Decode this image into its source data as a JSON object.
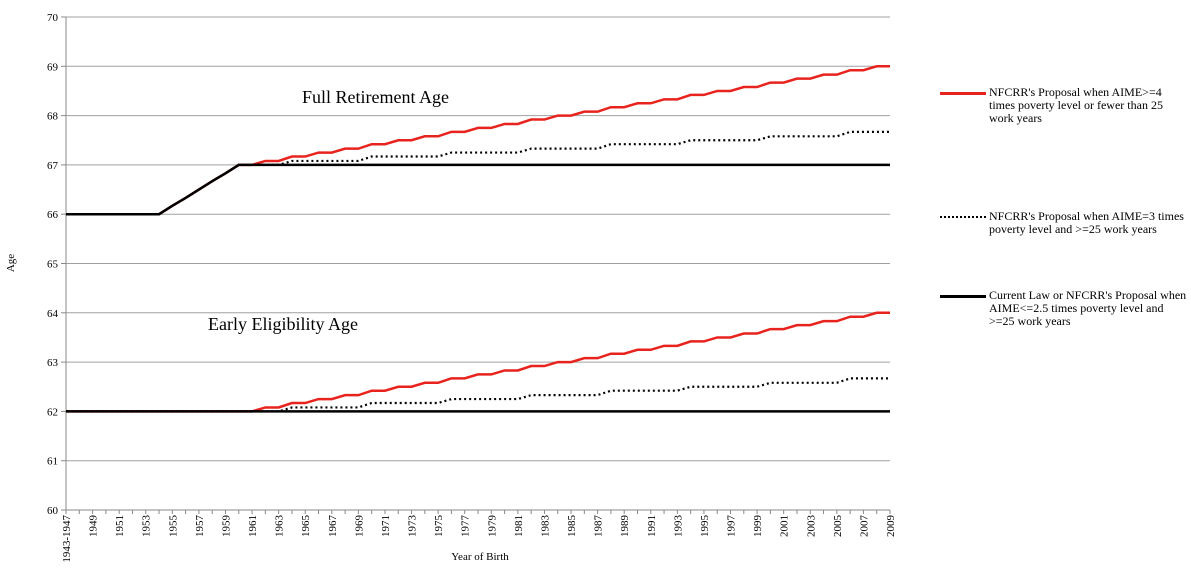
{
  "chart_data": {
    "type": "line",
    "x_label": "Year of Birth",
    "y_label": "Age",
    "annotations": [
      "Full Retirement Age",
      "Early Eligibility Age"
    ],
    "categories": [
      "1943-1947",
      null,
      "1949",
      null,
      "1951",
      null,
      "1953",
      null,
      "1955",
      null,
      "1957",
      null,
      "1959",
      null,
      "1961",
      null,
      "1963",
      null,
      "1965",
      null,
      "1967",
      null,
      "1969",
      null,
      "1971",
      null,
      "1973",
      null,
      "1975",
      null,
      "1977",
      null,
      "1979",
      null,
      "1981",
      null,
      "1983",
      null,
      "1985",
      null,
      "1987",
      null,
      "1989",
      null,
      "1991",
      null,
      "1993",
      null,
      "1995",
      null,
      "1997",
      null,
      "1999",
      null,
      "2001",
      null,
      "2003",
      null,
      "2005",
      null,
      "2007",
      null,
      "2009"
    ],
    "ylim": [
      60,
      70
    ],
    "yticks": [
      60,
      61,
      62,
      63,
      64,
      65,
      66,
      67,
      68,
      69,
      70
    ],
    "grid": true,
    "series": [
      {
        "name": "NFCRR's Proposal when AIME>=4 times poverty level or fewer than 25 work years",
        "color": "#e8231d",
        "dashed": false,
        "values": [
          66,
          66,
          66,
          66,
          66,
          66,
          66,
          66,
          66.17,
          66.33,
          66.5,
          66.67,
          66.83,
          67,
          67,
          67.08,
          67.08,
          67.17,
          67.17,
          67.25,
          67.25,
          67.33,
          67.33,
          67.42,
          67.42,
          67.5,
          67.5,
          67.58,
          67.58,
          67.67,
          67.67,
          67.75,
          67.75,
          67.83,
          67.83,
          67.92,
          67.92,
          68,
          68,
          68.08,
          68.08,
          68.17,
          68.17,
          68.25,
          68.25,
          68.33,
          68.33,
          68.42,
          68.42,
          68.5,
          68.5,
          68.58,
          68.58,
          68.67,
          68.67,
          68.75,
          68.75,
          68.83,
          68.83,
          68.92,
          68.92,
          69,
          69
        ],
        "early_values": [
          62,
          62,
          62,
          62,
          62,
          62,
          62,
          62,
          62,
          62,
          62,
          62,
          62,
          62,
          62,
          62.08,
          62.08,
          62.17,
          62.17,
          62.25,
          62.25,
          62.33,
          62.33,
          62.42,
          62.42,
          62.5,
          62.5,
          62.58,
          62.58,
          62.67,
          62.67,
          62.75,
          62.75,
          62.83,
          62.83,
          62.92,
          62.92,
          63,
          63,
          63.08,
          63.08,
          63.17,
          63.17,
          63.25,
          63.25,
          63.33,
          63.33,
          63.42,
          63.42,
          63.5,
          63.5,
          63.58,
          63.58,
          63.67,
          63.67,
          63.75,
          63.75,
          63.83,
          63.83,
          63.92,
          63.92,
          64,
          64
        ]
      },
      {
        "name": "NFCRR's Proposal when AIME=3 times poverty level and >=25 work years",
        "color": "#000000",
        "dashed": true,
        "values": [
          66,
          66,
          66,
          66,
          66,
          66,
          66,
          66,
          66.17,
          66.33,
          66.5,
          66.67,
          66.83,
          67,
          67,
          67,
          67,
          67.08,
          67.08,
          67.08,
          67.08,
          67.08,
          67.08,
          67.17,
          67.17,
          67.17,
          67.17,
          67.17,
          67.17,
          67.25,
          67.25,
          67.25,
          67.25,
          67.25,
          67.25,
          67.33,
          67.33,
          67.33,
          67.33,
          67.33,
          67.33,
          67.42,
          67.42,
          67.42,
          67.42,
          67.42,
          67.42,
          67.5,
          67.5,
          67.5,
          67.5,
          67.5,
          67.5,
          67.58,
          67.58,
          67.58,
          67.58,
          67.58,
          67.58,
          67.67,
          67.67,
          67.67,
          67.67
        ],
        "early_values": [
          62,
          62,
          62,
          62,
          62,
          62,
          62,
          62,
          62,
          62,
          62,
          62,
          62,
          62,
          62,
          62,
          62,
          62.08,
          62.08,
          62.08,
          62.08,
          62.08,
          62.08,
          62.17,
          62.17,
          62.17,
          62.17,
          62.17,
          62.17,
          62.25,
          62.25,
          62.25,
          62.25,
          62.25,
          62.25,
          62.33,
          62.33,
          62.33,
          62.33,
          62.33,
          62.33,
          62.42,
          62.42,
          62.42,
          62.42,
          62.42,
          62.42,
          62.5,
          62.5,
          62.5,
          62.5,
          62.5,
          62.5,
          62.58,
          62.58,
          62.58,
          62.58,
          62.58,
          62.58,
          62.67,
          62.67,
          62.67,
          62.67
        ]
      },
      {
        "name": "Current Law or NFCRR's Proposal when AIME<=2.5 times poverty level and >=25 work years",
        "color": "#000000",
        "dashed": false,
        "values": [
          66,
          66,
          66,
          66,
          66,
          66,
          66,
          66,
          66.17,
          66.33,
          66.5,
          66.67,
          66.83,
          67,
          67,
          67,
          67,
          67,
          67,
          67,
          67,
          67,
          67,
          67,
          67,
          67,
          67,
          67,
          67,
          67,
          67,
          67,
          67,
          67,
          67,
          67,
          67,
          67,
          67,
          67,
          67,
          67,
          67,
          67,
          67,
          67,
          67,
          67,
          67,
          67,
          67,
          67,
          67,
          67,
          67,
          67,
          67,
          67,
          67,
          67,
          67,
          67,
          67
        ],
        "early_values": [
          62,
          62,
          62,
          62,
          62,
          62,
          62,
          62,
          62,
          62,
          62,
          62,
          62,
          62,
          62,
          62,
          62,
          62,
          62,
          62,
          62,
          62,
          62,
          62,
          62,
          62,
          62,
          62,
          62,
          62,
          62,
          62,
          62,
          62,
          62,
          62,
          62,
          62,
          62,
          62,
          62,
          62,
          62,
          62,
          62,
          62,
          62,
          62,
          62,
          62,
          62,
          62,
          62,
          62,
          62,
          62,
          62,
          62,
          62,
          62,
          62,
          62,
          62
        ]
      }
    ]
  }
}
